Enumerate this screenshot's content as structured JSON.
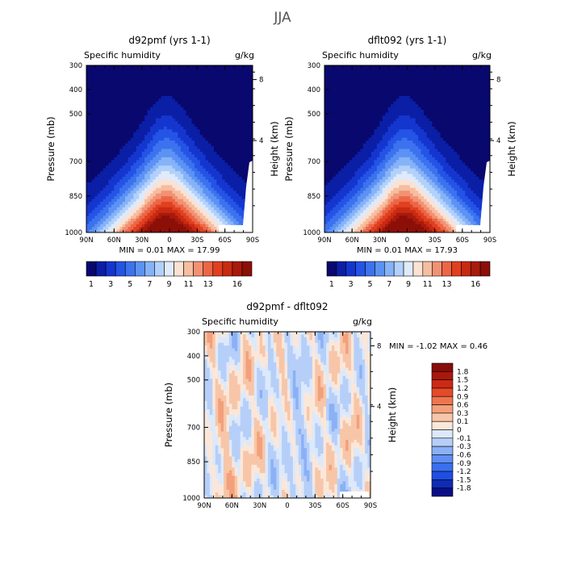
{
  "page": {
    "title": "JJA"
  },
  "colors": {
    "full_scale": [
      "#08086e",
      "#0b1ea6",
      "#1436cf",
      "#2454e6",
      "#3c72ee",
      "#5c92f4",
      "#86b3f8",
      "#b2d1fa",
      "#dfeafb",
      "#fbe2d3",
      "#f6bda0",
      "#f29273",
      "#ec6646",
      "#e0401f",
      "#c82a12",
      "#a81a0b",
      "#8c0f08"
    ],
    "diff_scale": [
      "#0a0d86",
      "#0f2cb5",
      "#1f4ee2",
      "#3a6ff0",
      "#5f8ff4",
      "#8ab0f6",
      "#b6cff8",
      "#dce9fb",
      "#fbe7d9",
      "#f7c6a8",
      "#f3a07b",
      "#ee764f",
      "#e44b2a",
      "#cd2a13",
      "#a8180c",
      "#880c08"
    ],
    "mask": "#ffffff"
  },
  "chart_data": [
    {
      "id": "d92pmf",
      "type": "contour",
      "title": "d92pmf (yrs 1-1)",
      "subtitle_left": "Specific humidity",
      "subtitle_right": "g/kg",
      "xlabel": "",
      "ylabel": "Pressure (mb)",
      "right_label": "Height (km)",
      "x_ticks": [
        "90N",
        "60N",
        "30N",
        "0",
        "30S",
        "60S",
        "90S"
      ],
      "y_ticks": [
        "300",
        "400",
        "500",
        "700",
        "850",
        "1000"
      ],
      "right_ticks": [
        "8",
        "4"
      ],
      "ylim": [
        1000,
        300
      ],
      "colorbar_labels": [
        "1",
        "3",
        "5",
        "7",
        "9",
        "11",
        "13",
        "16"
      ],
      "stats": "MIN =   0.01   MAX =   17.99"
    },
    {
      "id": "dflt092",
      "type": "contour",
      "title": "dflt092 (yrs 1-1)",
      "subtitle_left": "Specific humidity",
      "subtitle_right": "g/kg",
      "xlabel": "",
      "ylabel": "Pressure (mb)",
      "right_label": "Height (km)",
      "x_ticks": [
        "90N",
        "60N",
        "30N",
        "0",
        "30S",
        "60S",
        "90S"
      ],
      "y_ticks": [
        "300",
        "400",
        "500",
        "700",
        "850",
        "1000"
      ],
      "right_ticks": [
        "8",
        "4"
      ],
      "ylim": [
        1000,
        300
      ],
      "colorbar_labels": [
        "1",
        "3",
        "5",
        "7",
        "9",
        "11",
        "13",
        "16"
      ],
      "stats": "MIN =   0.01   MAX =   17.93"
    },
    {
      "id": "diff",
      "type": "contour",
      "title": "d92pmf - dflt092",
      "subtitle_left": "Specific humidity",
      "subtitle_right": "g/kg",
      "xlabel": "",
      "ylabel": "Pressure (mb)",
      "right_label": "Height (km)",
      "x_ticks": [
        "90N",
        "60N",
        "30N",
        "0",
        "30S",
        "60S",
        "90S"
      ],
      "y_ticks": [
        "300",
        "400",
        "500",
        "700",
        "850",
        "1000"
      ],
      "right_ticks": [
        "8",
        "4"
      ],
      "ylim": [
        1000,
        300
      ],
      "colorbar_labels": [
        "1.8",
        "1.5",
        "1.2",
        "0.9",
        "0.6",
        "0.3",
        "0.1",
        "0",
        "-0.1",
        "-0.3",
        "-0.6",
        "-0.9",
        "-1.2",
        "-1.5",
        "-1.8"
      ],
      "stats": "MIN =   -1.02   MAX =   0.46"
    }
  ]
}
